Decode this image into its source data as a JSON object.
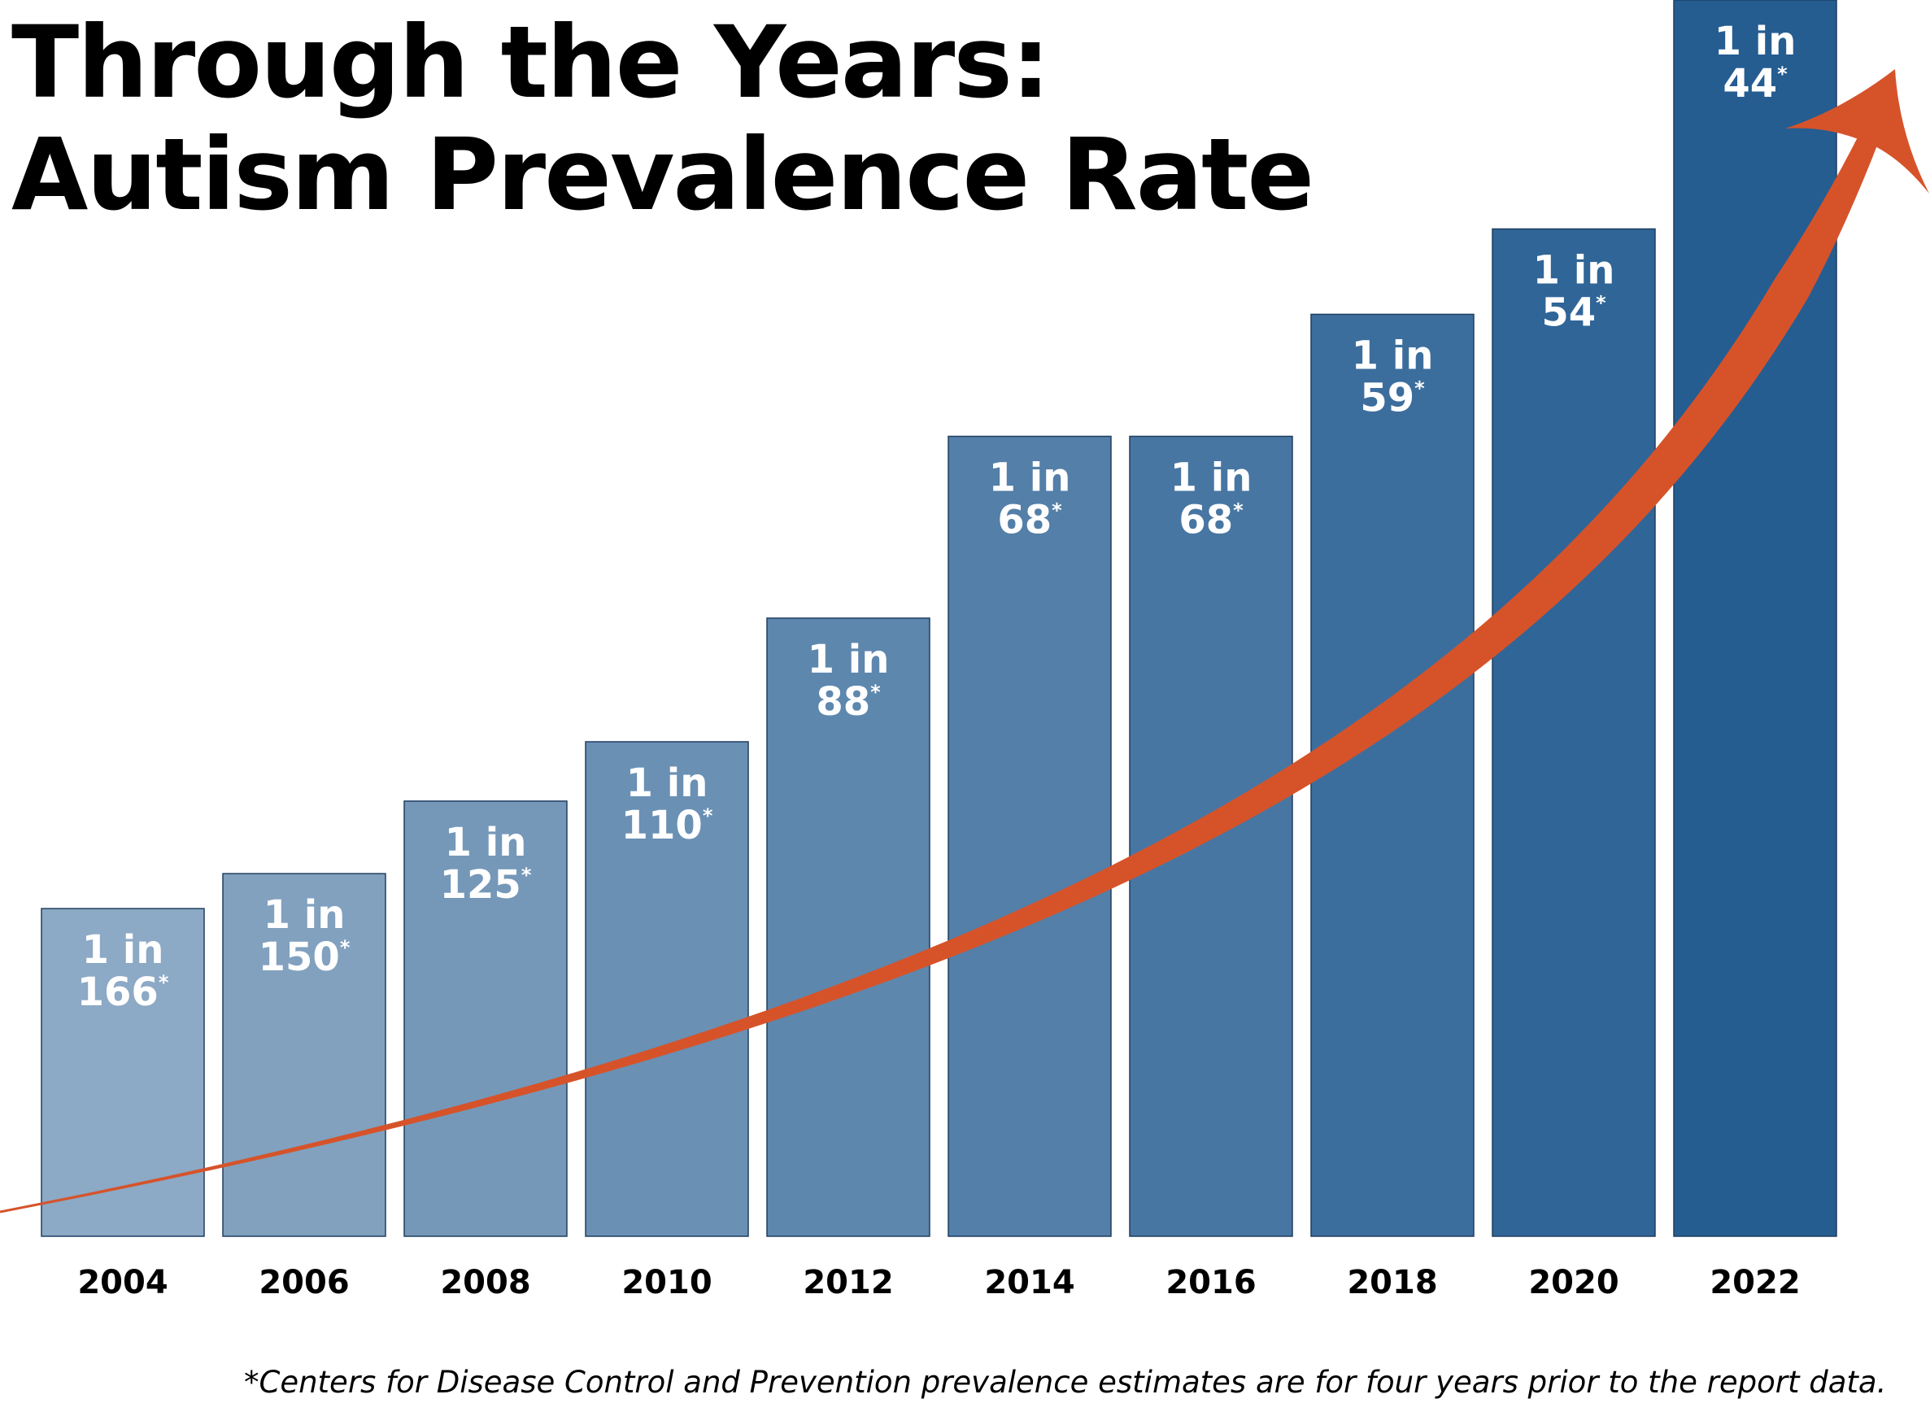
{
  "title_line1": "Through the Years:",
  "title_line2": "Autism Prevalence Rate",
  "footnote": "*Centers for Disease Control and Prevention prevalence estimates are for four years prior to the report data.",
  "colors": {
    "bar_light": "#8ca9c5",
    "bar_dark": "#255d91",
    "arrow": "#d6532a",
    "text_on_bar": "#ffffff",
    "axis_text": "#000000"
  },
  "chart_data": {
    "type": "bar",
    "title": "Through the Years: Autism Prevalence Rate",
    "xlabel": "",
    "ylabel": "",
    "unit": "1 in N children",
    "categories": [
      "2004",
      "2006",
      "2008",
      "2010",
      "2012",
      "2014",
      "2016",
      "2018",
      "2020",
      "2022"
    ],
    "values": [
      166,
      150,
      125,
      110,
      88,
      68,
      68,
      59,
      54,
      44
    ],
    "prevalence_per_1000": [
      6.02,
      6.67,
      8.0,
      9.09,
      11.36,
      14.71,
      14.71,
      16.95,
      18.52,
      22.73
    ],
    "label_prefix": "1 in",
    "label_suffix": "*",
    "grid": false,
    "legend": "none",
    "trend_arrow": "increasing"
  }
}
